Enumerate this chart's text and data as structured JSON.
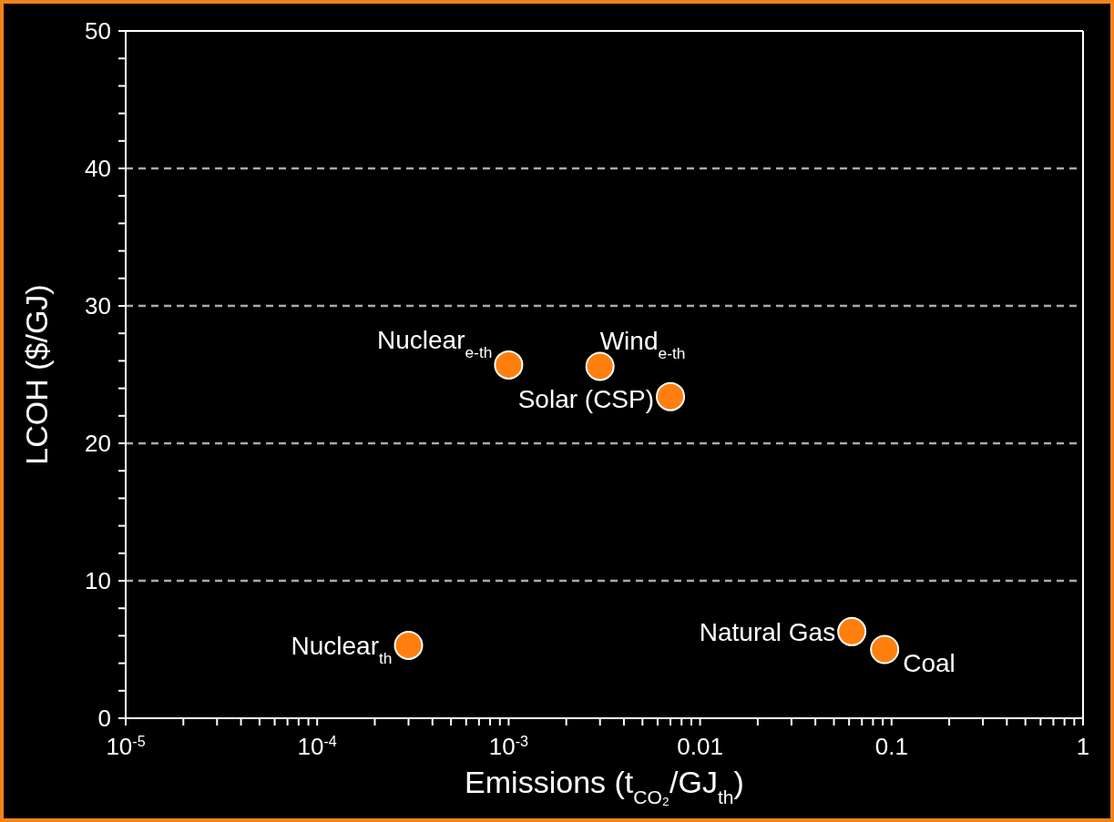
{
  "chart_data": {
    "type": "scatter",
    "xlabel": "Emissions (t$_{CO₂}$/GJ$_{th}$)",
    "ylabel": "LCOH ($/GJ)",
    "x": [
      0.0003,
      0.001,
      0.003,
      0.007,
      0.062,
      0.092
    ],
    "series": [
      {
        "color": "#ff7f0e",
        "values": [
          5.3,
          25.7,
          25.6,
          23.4,
          6.3,
          5.0
        ]
      }
    ],
    "marker": "circle",
    "log": "x",
    "grid": "y",
    "xlim": [
      1e-05,
      1
    ],
    "xticks": [
      {
        "value": 1e-05,
        "label": "10$^{-5}$"
      },
      {
        "value": 2e-05,
        "label": null
      },
      {
        "value": 3e-05,
        "label": null
      },
      {
        "value": 4e-05,
        "label": null
      },
      {
        "value": 5e-05,
        "label": null
      },
      {
        "value": 6e-05,
        "label": null
      },
      {
        "value": 7e-05,
        "label": null
      },
      {
        "value": 8e-05,
        "label": null
      },
      {
        "value": 9e-05,
        "label": null
      },
      {
        "value": 0.0001,
        "label": "10$^{-4}$"
      },
      {
        "value": 0.0002,
        "label": null
      },
      {
        "value": 0.0003,
        "label": null
      },
      {
        "value": 0.0004,
        "label": null
      },
      {
        "value": 0.0005,
        "label": null
      },
      {
        "value": 0.0006,
        "label": null
      },
      {
        "value": 0.0007,
        "label": null
      },
      {
        "value": 0.0008,
        "label": null
      },
      {
        "value": 0.0009,
        "label": null
      },
      {
        "value": 0.001,
        "label": "10$^{-3}$"
      },
      {
        "value": 0.002,
        "label": null
      },
      {
        "value": 0.003,
        "label": null
      },
      {
        "value": 0.004,
        "label": null
      },
      {
        "value": 0.005,
        "label": null
      },
      {
        "value": 0.006,
        "label": null
      },
      {
        "value": 0.007,
        "label": null
      },
      {
        "value": 0.008,
        "label": null
      },
      {
        "value": 0.009,
        "label": null
      },
      0.01,
      {
        "value": 0.02,
        "label": null
      },
      {
        "value": 0.03,
        "label": null
      },
      {
        "value": 0.04,
        "label": null
      },
      {
        "value": 0.05,
        "label": null
      },
      {
        "value": 0.06,
        "label": null
      },
      {
        "value": 0.07,
        "label": null
      },
      {
        "value": 0.08,
        "label": null
      },
      {
        "value": 0.09,
        "label": null
      },
      0.1,
      {
        "value": 0.2,
        "label": null
      },
      {
        "value": 0.3,
        "label": null
      },
      {
        "value": 0.4,
        "label": null
      },
      {
        "value": 0.5,
        "label": null
      },
      {
        "value": 0.6,
        "label": null
      },
      {
        "value": 0.7,
        "label": null
      },
      {
        "value": 0.8,
        "label": null
      },
      {
        "value": 0.9,
        "label": null
      },
      1
    ],
    "ylim": [
      0,
      50
    ],
    "yticks": [
      0,
      {
        "value": 2,
        "label": null
      },
      {
        "value": 4,
        "label": null
      },
      {
        "value": 6,
        "label": null
      },
      {
        "value": 8,
        "label": null
      },
      10,
      {
        "value": 12,
        "label": null
      },
      {
        "value": 14,
        "label": null
      },
      {
        "value": 16,
        "label": null
      },
      {
        "value": 18,
        "label": null
      },
      20,
      {
        "value": 22,
        "label": null
      },
      {
        "value": 24,
        "label": null
      },
      {
        "value": 26,
        "label": null
      },
      {
        "value": 28,
        "label": null
      },
      30,
      {
        "value": 32,
        "label": null
      },
      {
        "value": 34,
        "label": null
      },
      {
        "value": 36,
        "label": null
      },
      {
        "value": 38,
        "label": null
      },
      40,
      {
        "value": 42,
        "label": null
      },
      {
        "value": 44,
        "label": null
      },
      {
        "value": 46,
        "label": null
      },
      {
        "value": 48,
        "label": null
      },
      50
    ],
    "annotations": [
      {
        "text": "Nuclear$_{th}$",
        "x": 0.0003,
        "y": 5.3
      },
      {
        "text": "Nuclear$_{e-th}$",
        "x": 0.001,
        "y": 25.7
      },
      {
        "text": "Wind$_{e-th}$",
        "x": 0.003,
        "y": 25.6
      },
      {
        "text": "Solar (CSP)",
        "x": 0.007,
        "y": 23.4
      },
      {
        "text": "Natural Gas",
        "x": 0.062,
        "y": 6.3
      },
      {
        "text": "Coal",
        "x": 0.092,
        "y": 5.0
      }
    ]
  }
}
